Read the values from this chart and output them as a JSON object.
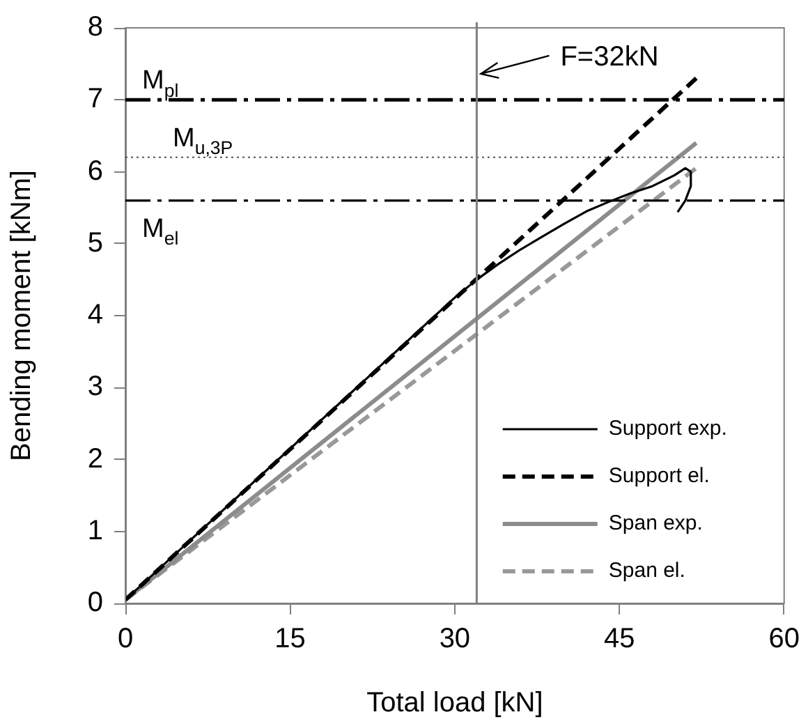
{
  "chart_data": {
    "type": "line",
    "xlabel": "Total load [kN]",
    "ylabel": "Bending moment [kNm]",
    "xlim": [
      0,
      60
    ],
    "xticks": [
      0,
      15,
      30,
      45,
      60
    ],
    "ylim": [
      0,
      8
    ],
    "yticks": [
      0,
      1,
      2,
      3,
      4,
      5,
      6,
      7,
      8
    ],
    "grid": false,
    "legend": "bottom right",
    "marker": "none",
    "series": [
      {
        "name": "Support exp.",
        "color": "#000000",
        "line_style": "solid",
        "x": [
          0,
          5,
          10,
          15,
          20,
          25,
          30,
          32,
          34,
          36,
          38,
          40,
          42,
          44,
          46,
          48,
          50,
          51,
          51.5,
          51.5,
          51,
          50.3
        ],
        "values": [
          0.05,
          0.75,
          1.45,
          2.15,
          2.85,
          3.55,
          4.25,
          4.5,
          4.72,
          4.92,
          5.1,
          5.28,
          5.45,
          5.58,
          5.7,
          5.8,
          5.95,
          6.05,
          6.0,
          5.8,
          5.6,
          5.44
        ]
      },
      {
        "name": "Support el.",
        "color": "#000000",
        "line_style": "dashed",
        "x": [
          0,
          52
        ],
        "values": [
          0.05,
          7.3
        ]
      },
      {
        "name": "Span exp.",
        "color": "#8c8c8c",
        "line_style": "solid",
        "x": [
          0,
          52
        ],
        "values": [
          0.05,
          6.4
        ]
      },
      {
        "name": "Span el.",
        "color": "#999999",
        "line_style": "dashed",
        "x": [
          0,
          52
        ],
        "values": [
          0.05,
          6.05
        ]
      }
    ],
    "ref_lines": [
      {
        "axis": "y",
        "value": 7,
        "label": "M$_{pl}$",
        "color": "#000000",
        "line_style": "dashdot"
      },
      {
        "axis": "y",
        "value": 6.2,
        "label": "M$_{u,3P}$",
        "color": "#555555",
        "line_style": "dotted"
      },
      {
        "axis": "y",
        "value": 5.6,
        "label": "M$_{el}$",
        "color": "#000000",
        "line_style": "dashdot"
      },
      {
        "axis": "x",
        "value": 32,
        "color": "#808080",
        "line_style": "solid"
      }
    ],
    "annotations": [
      {
        "text": "F=32kN",
        "x": 32,
        "y": 7.4
      }
    ]
  }
}
